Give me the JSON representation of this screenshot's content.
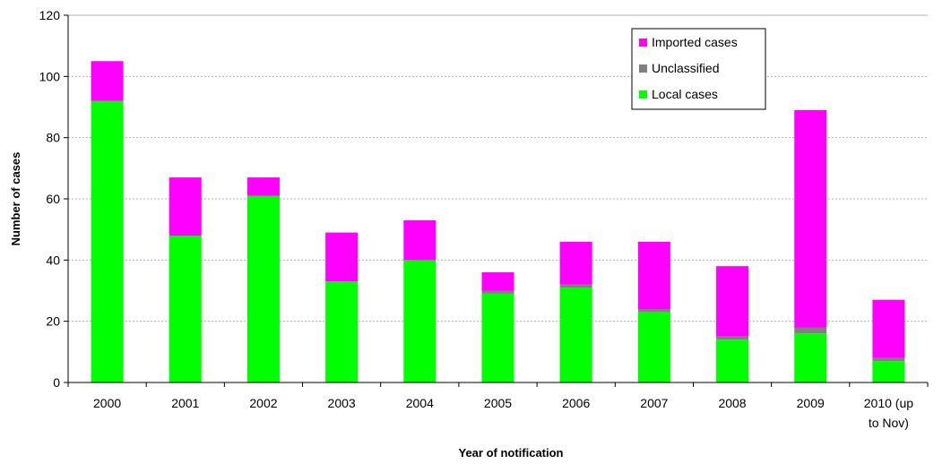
{
  "chart_data": {
    "type": "bar",
    "stacked": true,
    "categories": [
      [
        "2000"
      ],
      [
        "2001"
      ],
      [
        "2002"
      ],
      [
        "2003"
      ],
      [
        "2004"
      ],
      [
        "2005"
      ],
      [
        "2006"
      ],
      [
        "2007"
      ],
      [
        "2008"
      ],
      [
        "2009"
      ],
      [
        "2010 (up",
        "to Nov)"
      ]
    ],
    "series": [
      {
        "name": "Local cases",
        "color": "#00ff00",
        "values": [
          92,
          48,
          61,
          33,
          40,
          29,
          31,
          23,
          14,
          16,
          7
        ]
      },
      {
        "name": "Unclassified",
        "color": "#808080",
        "values": [
          0,
          0,
          0,
          0,
          0,
          1,
          1,
          1,
          1,
          2,
          1
        ]
      },
      {
        "name": "Imported cases",
        "color": "#ff00ff",
        "values": [
          13,
          19,
          6,
          16,
          13,
          6,
          14,
          22,
          23,
          71,
          19
        ]
      }
    ],
    "title": "",
    "xlabel": "Year of notification",
    "ylabel": "Number of cases",
    "ylim": [
      0,
      120
    ],
    "yticks": [
      0,
      20,
      40,
      60,
      80,
      100,
      120
    ],
    "grid": true,
    "legend": {
      "placement": "top-right",
      "order": [
        "Imported cases",
        "Unclassified",
        "Local cases"
      ]
    }
  }
}
